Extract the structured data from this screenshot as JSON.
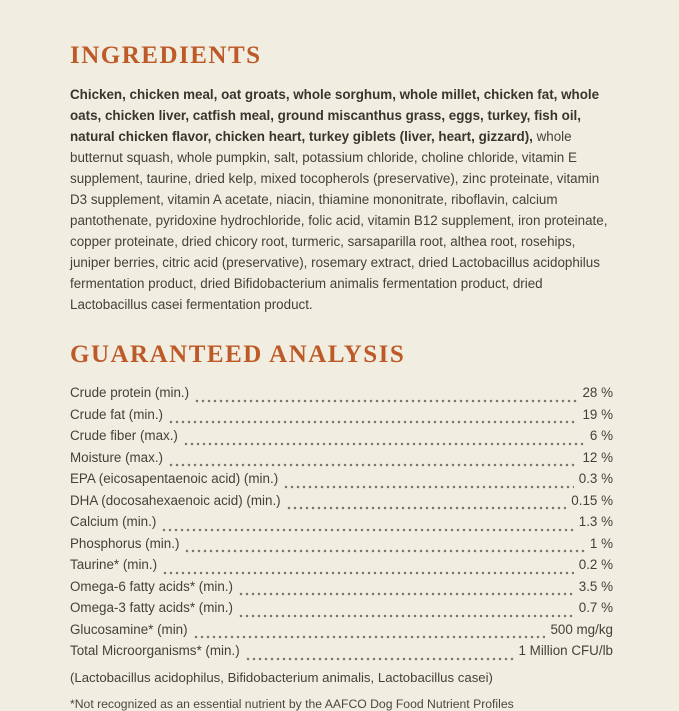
{
  "page": {
    "background_color": "#f1eee1",
    "heading_color": "#bd5a28",
    "text_color": "#44413a"
  },
  "ingredients": {
    "heading": "INGREDIENTS",
    "bold_text": "Chicken, chicken meal, oat groats, whole sorghum, whole millet, chicken fat, whole oats, chicken liver, catfish meal, ground miscanthus grass, eggs, turkey, fish oil, natural chicken flavor, chicken heart, turkey giblets (liver, heart, gizzard),",
    "regular_text": " whole butternut squash, whole pumpkin, salt, potassium chloride, choline chloride, vitamin E supplement, taurine, dried kelp, mixed tocopherols (preservative), zinc proteinate, vitamin D3 supplement, vitamin A acetate, niacin, thiamine mononitrate, riboflavin, calcium pantothenate, pyridoxine hydrochloride, folic acid, vitamin B12 supplement, iron proteinate, copper proteinate, dried chicory root, turmeric, sarsaparilla root, althea root, rosehips, juniper berries, citric acid (preservative), rosemary extract, dried Lactobacillus acidophilus fermentation product, dried Bifidobacterium animalis fermentation product, dried Lactobacillus casei fermentation product."
  },
  "analysis": {
    "heading": "GUARANTEED ANALYSIS",
    "rows": [
      {
        "label": "Crude protein (min.)",
        "value": "28 %"
      },
      {
        "label": "Crude fat (min.)",
        "value": "19 %"
      },
      {
        "label": "Crude fiber (max.)",
        "value": "6 %"
      },
      {
        "label": "Moisture (max.)",
        "value": "12 %"
      },
      {
        "label": "EPA (eicosapentaenoic acid) (min.)",
        "value": "0.3 %"
      },
      {
        "label": "DHA (docosahexaenoic acid) (min.)",
        "value": "0.15 %"
      },
      {
        "label": "Calcium (min.)",
        "value": "1.3 %"
      },
      {
        "label": "Phosphorus (min.)",
        "value": "1 %"
      },
      {
        "label": "Taurine* (min.)",
        "value": "0.2 %"
      },
      {
        "label": "Omega-6 fatty acids* (min.)",
        "value": "3.5 %"
      },
      {
        "label": "Omega-3 fatty acids* (min.)",
        "value": "0.7 %"
      },
      {
        "label": "Glucosamine* (min)",
        "value": "500 mg/kg"
      },
      {
        "label": "Total Microorganisms* (min.)",
        "value": "1 Million CFU/lb"
      }
    ],
    "note": "(Lactobacillus acidophilus, Bifidobacterium animalis, Lactobacillus casei)",
    "footnote": "*Not recognized as an essential nutrient by the AAFCO Dog Food Nutrient Profiles"
  }
}
